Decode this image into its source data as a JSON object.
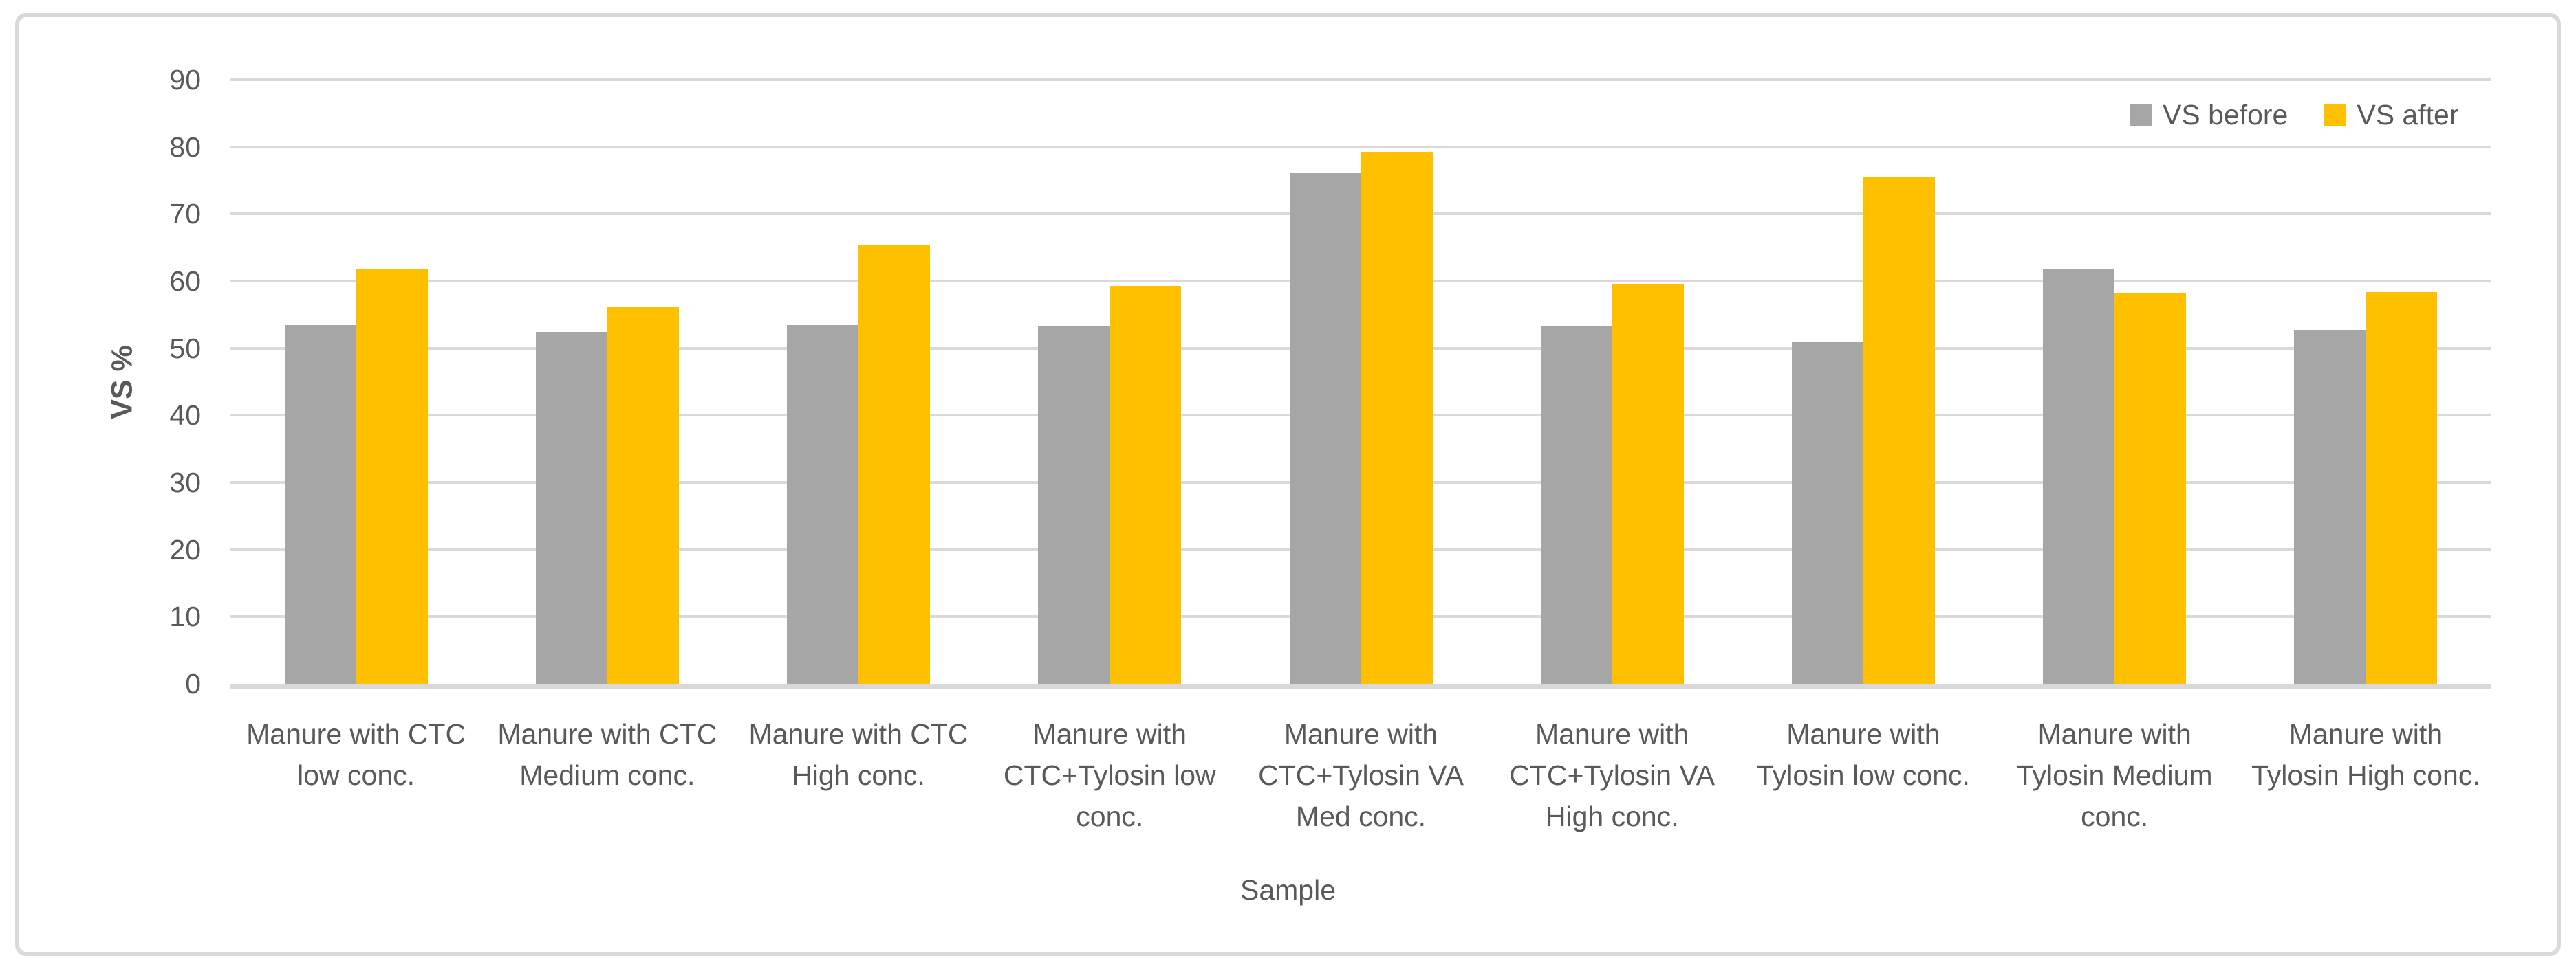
{
  "figure": {
    "background_color": "#FFFFFF",
    "border_color": "#D9D9D9",
    "text_color": "#595959",
    "gridline_color": "#D9D9D9"
  },
  "chart_data": {
    "type": "bar",
    "title": "",
    "xlabel": "Sample",
    "ylabel": "VS %",
    "ylim": [
      0,
      90
    ],
    "yticks": [
      0,
      10,
      20,
      30,
      40,
      50,
      60,
      70,
      80,
      90
    ],
    "grid": true,
    "legend_position": "top-right",
    "categories": [
      "Manure with CTC low conc.",
      "Manure with CTC Medium conc.",
      "Manure with CTC High conc.",
      "Manure with CTC+Tylosin low conc.",
      "Manure with CTC+Tylosin VA Med conc.",
      "Manure with CTC+Tylosin VA High conc.",
      "Manure with Tylosin low conc.",
      "Manure with Tylosin Medium conc.",
      "Manure with Tylosin High conc."
    ],
    "category_lines": [
      [
        "Manure with CTC",
        "low conc."
      ],
      [
        "Manure with CTC",
        "Medium conc."
      ],
      [
        "Manure with CTC",
        "High conc."
      ],
      [
        "Manure with",
        "CTC+Tylosin low",
        "conc."
      ],
      [
        "Manure with",
        "CTC+Tylosin VA",
        "Med conc."
      ],
      [
        "Manure with",
        "CTC+Tylosin VA",
        "High conc."
      ],
      [
        "Manure with",
        "Tylosin low conc."
      ],
      [
        "Manure with",
        "Tylosin Medium",
        "conc."
      ],
      [
        "Manure with",
        "Tylosin High conc."
      ]
    ],
    "series": [
      {
        "name": "VS before",
        "color": "#A6A6A6",
        "values": [
          53.4,
          52.4,
          53.4,
          53.3,
          76.1,
          53.3,
          51.0,
          61.7,
          52.7
        ]
      },
      {
        "name": "VS after",
        "color": "#FFC000",
        "values": [
          61.8,
          56.1,
          65.4,
          59.3,
          79.2,
          59.6,
          75.6,
          58.2,
          58.4
        ]
      }
    ]
  }
}
